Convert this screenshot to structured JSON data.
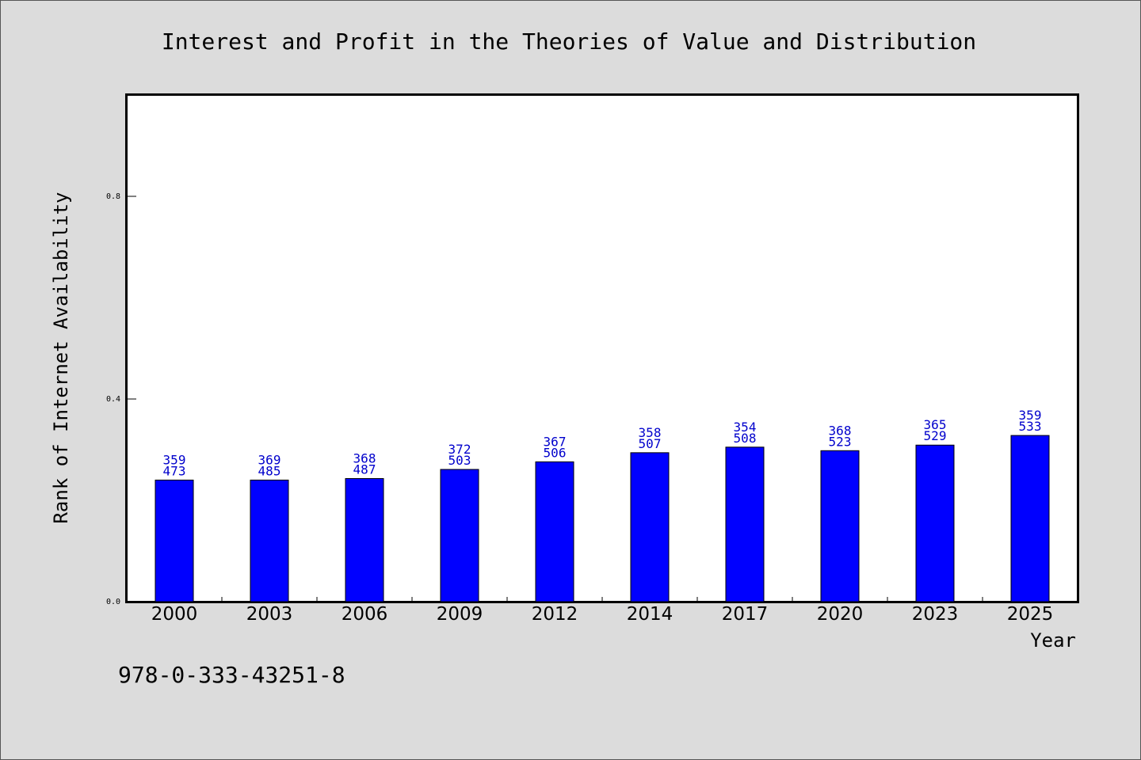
{
  "chart_data": {
    "type": "bar",
    "title": "Interest and Profit in the Theories of Value and Distribution",
    "xlabel": "Year",
    "ylabel": "Rank of Internet Availability",
    "categories": [
      "2000",
      "2003",
      "2006",
      "2009",
      "2012",
      "2014",
      "2017",
      "2020",
      "2023",
      "2025"
    ],
    "values": [
      0.24,
      0.24,
      0.243,
      0.261,
      0.276,
      0.294,
      0.305,
      0.298,
      0.309,
      0.328
    ],
    "data_labels_top": [
      "359",
      "369",
      "368",
      "372",
      "367",
      "358",
      "354",
      "368",
      "365",
      "359"
    ],
    "data_labels_bottom": [
      "473",
      "485",
      "487",
      "503",
      "506",
      "507",
      "508",
      "523",
      "529",
      "533"
    ],
    "yticks": [
      "0.0",
      "0.4",
      "0.8"
    ],
    "ylim": [
      0,
      1.0
    ],
    "grid": false,
    "bar_color": "#0000ff",
    "label_color": "#0000cc"
  },
  "footer": {
    "isbn": "978-0-333-43251-8"
  }
}
